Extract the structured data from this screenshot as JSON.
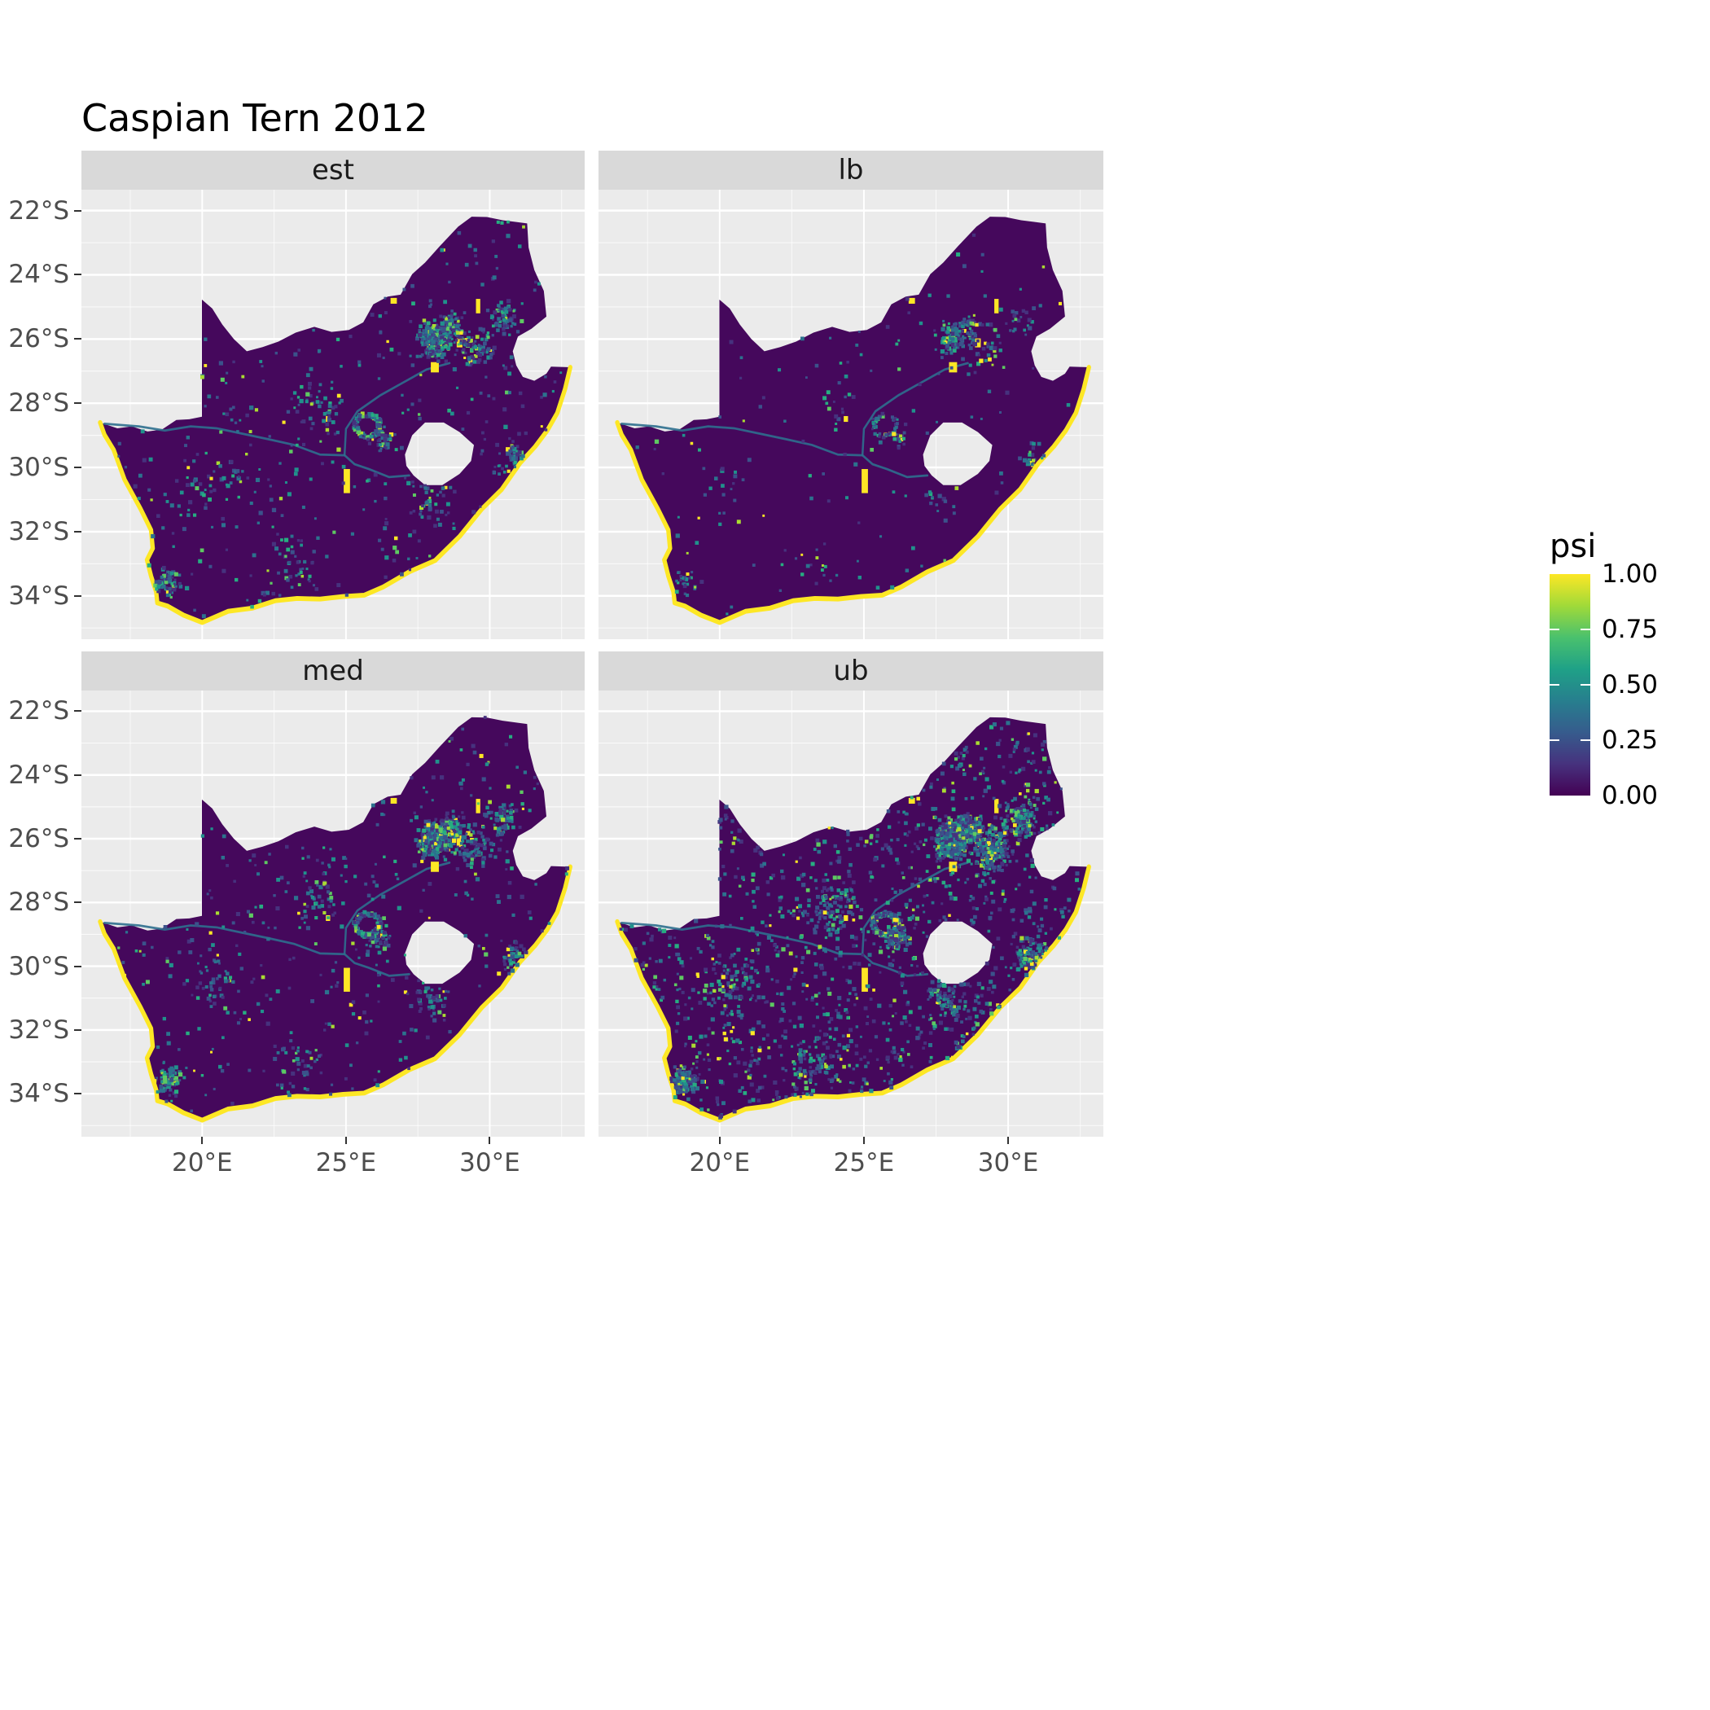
{
  "title": "Caspian Tern 2012",
  "chart_data": {
    "type": "heatmap",
    "subtype": "faceted raster occupancy-probability map (ggplot-style facet_wrap)",
    "region": "South Africa",
    "facets": [
      "est",
      "lb",
      "med",
      "ub"
    ],
    "legend": {
      "title": "psi",
      "labels": [
        "1.00",
        "0.75",
        "0.50",
        "0.25",
        "0.00"
      ],
      "values": [
        1.0,
        0.75,
        0.5,
        0.25,
        0.0
      ],
      "stops": [
        "#440154",
        "#46327E",
        "#365C8D",
        "#277F8E",
        "#1FA187",
        "#4AC16D",
        "#A0DA39",
        "#FDE725"
      ]
    },
    "x_axis": {
      "ticks": [
        "20°E",
        "25°E",
        "30°E"
      ],
      "values": [
        20,
        25,
        30
      ]
    },
    "y_axis": {
      "ticks": [
        "22°S",
        "24°S",
        "26°S",
        "28°S",
        "30°S",
        "32°S",
        "34°S"
      ],
      "values": [
        22,
        24,
        26,
        28,
        30,
        32,
        34
      ]
    },
    "value_summary": {
      "description": "psi mostly near 0 (dark purple) across the country; coastline cells near 1 (yellow); scattered mid/high cells concentrated around Gauteng, Kimberley ring, Bloemfontein, Cape Town and eastern highveld; density lowest in lb, moderate in est and med, highest in ub",
      "scale_range": [
        0.0,
        1.0
      ]
    },
    "colors": {
      "background": "#FFFFFF",
      "panel_bg": "#EBEBEB",
      "strip_bg": "#D9D9D9",
      "grid": "#FFFFFF",
      "base": "#45085C",
      "max": "#FDE725",
      "river": "#2E6F8E",
      "axis_text": "#4D4D4D",
      "tick": "#333333",
      "cell_weights": [
        [
          "#46327E",
          0.24
        ],
        [
          "#3B528B",
          0.22
        ],
        [
          "#2C728E",
          0.2
        ],
        [
          "#21918C",
          0.14
        ],
        [
          "#27AD81",
          0.08
        ],
        [
          "#5EC962",
          0.05
        ],
        [
          "#AADC32",
          0.04
        ],
        [
          "#FDE725",
          0.03
        ]
      ]
    },
    "facet_params": {
      "est": {
        "seed": 101,
        "base": 620,
        "hot": 1.0
      },
      "lb": {
        "seed": 202,
        "base": 240,
        "hot": 0.38
      },
      "med": {
        "seed": 303,
        "base": 680,
        "hot": 1.05
      },
      "ub": {
        "seed": 404,
        "base": 2200,
        "hot": 2.2
      }
    },
    "map": {
      "coast_from": 43,
      "outer": [
        [
          16.45,
          28.6
        ],
        [
          17.05,
          28.78
        ],
        [
          17.55,
          28.72
        ],
        [
          18.1,
          28.88
        ],
        [
          18.6,
          28.82
        ],
        [
          19.1,
          28.52
        ],
        [
          19.55,
          28.5
        ],
        [
          19.99,
          28.42
        ],
        [
          19.99,
          24.77
        ],
        [
          20.35,
          25.05
        ],
        [
          20.7,
          25.55
        ],
        [
          21.1,
          26.0
        ],
        [
          21.55,
          26.38
        ],
        [
          22.1,
          26.25
        ],
        [
          22.65,
          26.08
        ],
        [
          23.25,
          25.8
        ],
        [
          23.9,
          25.62
        ],
        [
          24.5,
          25.78
        ],
        [
          25.1,
          25.72
        ],
        [
          25.6,
          25.48
        ],
        [
          25.95,
          24.92
        ],
        [
          26.45,
          24.68
        ],
        [
          26.9,
          24.62
        ],
        [
          27.3,
          23.98
        ],
        [
          27.75,
          23.62
        ],
        [
          28.25,
          23.12
        ],
        [
          28.9,
          22.5
        ],
        [
          29.37,
          22.19
        ],
        [
          29.9,
          22.2
        ],
        [
          30.45,
          22.3
        ],
        [
          31.3,
          22.4
        ],
        [
          31.35,
          23.15
        ],
        [
          31.55,
          23.85
        ],
        [
          31.88,
          24.5
        ],
        [
          31.97,
          25.3
        ],
        [
          31.45,
          25.68
        ],
        [
          30.98,
          25.92
        ],
        [
          30.8,
          26.38
        ],
        [
          30.92,
          26.82
        ],
        [
          31.15,
          27.18
        ],
        [
          31.55,
          27.3
        ],
        [
          31.97,
          27.08
        ],
        [
          32.13,
          26.86
        ],
        [
          32.8,
          26.88
        ],
        [
          32.62,
          27.55
        ],
        [
          32.35,
          28.3
        ],
        [
          32.0,
          28.85
        ],
        [
          31.58,
          29.35
        ],
        [
          31.05,
          29.87
        ],
        [
          30.42,
          30.68
        ],
        [
          29.72,
          31.3
        ],
        [
          28.95,
          32.15
        ],
        [
          28.1,
          32.9
        ],
        [
          27.2,
          33.25
        ],
        [
          26.3,
          33.72
        ],
        [
          25.63,
          33.98
        ],
        [
          24.9,
          34.02
        ],
        [
          24.1,
          34.1
        ],
        [
          23.3,
          34.08
        ],
        [
          22.55,
          34.15
        ],
        [
          21.75,
          34.38
        ],
        [
          20.9,
          34.48
        ],
        [
          20.0,
          34.83
        ],
        [
          19.35,
          34.6
        ],
        [
          18.8,
          34.32
        ],
        [
          18.44,
          34.22
        ],
        [
          18.4,
          33.88
        ],
        [
          18.22,
          33.38
        ],
        [
          18.08,
          32.88
        ],
        [
          18.28,
          32.52
        ],
        [
          18.22,
          31.95
        ],
        [
          17.85,
          31.28
        ],
        [
          17.3,
          30.38
        ],
        [
          16.92,
          29.45
        ],
        [
          16.6,
          28.98
        ]
      ],
      "lesotho": [
        [
          27.05,
          29.6
        ],
        [
          27.3,
          29.0
        ],
        [
          27.75,
          28.6
        ],
        [
          28.4,
          28.6
        ],
        [
          28.95,
          28.9
        ],
        [
          29.45,
          29.3
        ],
        [
          29.35,
          29.8
        ],
        [
          28.95,
          30.2
        ],
        [
          28.35,
          30.55
        ],
        [
          27.75,
          30.55
        ],
        [
          27.35,
          30.25
        ],
        [
          27.1,
          29.95
        ]
      ],
      "rivers": [
        [
          [
            28.6,
            26.75
          ],
          [
            27.8,
            26.95
          ],
          [
            27.0,
            27.35
          ],
          [
            26.2,
            27.75
          ],
          [
            25.4,
            28.25
          ],
          [
            25.0,
            28.8
          ],
          [
            24.95,
            29.62
          ]
        ],
        [
          [
            27.2,
            30.25
          ],
          [
            26.5,
            30.3
          ],
          [
            25.8,
            30.05
          ],
          [
            25.3,
            29.9
          ],
          [
            24.95,
            29.62
          ]
        ],
        [
          [
            24.95,
            29.62
          ],
          [
            24.1,
            29.6
          ],
          [
            23.2,
            29.3
          ],
          [
            22.3,
            29.12
          ],
          [
            21.4,
            28.95
          ],
          [
            20.5,
            28.78
          ],
          [
            19.6,
            28.72
          ],
          [
            18.7,
            28.85
          ],
          [
            17.8,
            28.72
          ],
          [
            16.6,
            28.64
          ]
        ]
      ],
      "hotspots": [
        {
          "lon": 28.05,
          "lat": 26.05,
          "sd": 0.5,
          "n": 240
        },
        {
          "lon": 28.65,
          "lat": 25.7,
          "sd": 0.45,
          "n": 110
        },
        {
          "lon": 25.75,
          "lat": 28.7,
          "ring": 0.42,
          "n": 120
        },
        {
          "lon": 18.8,
          "lat": 33.6,
          "sd": 0.38,
          "n": 70
        },
        {
          "lon": 26.2,
          "lat": 29.15,
          "sd": 0.35,
          "n": 45
        },
        {
          "lon": 30.85,
          "lat": 29.7,
          "sd": 0.5,
          "n": 55
        },
        {
          "lon": 29.45,
          "lat": 26.3,
          "sd": 0.6,
          "n": 85
        },
        {
          "lon": 24.0,
          "lat": 28.1,
          "sd": 0.8,
          "n": 40
        },
        {
          "lon": 30.45,
          "lat": 25.4,
          "sd": 0.55,
          "n": 55
        },
        {
          "lon": 27.9,
          "lat": 31.0,
          "sd": 0.7,
          "n": 40
        },
        {
          "lon": 20.4,
          "lat": 30.6,
          "sd": 0.9,
          "n": 35
        },
        {
          "lon": 23.3,
          "lat": 33.0,
          "sd": 0.9,
          "n": 35
        }
      ],
      "hot_patches": [
        {
          "x": 27.95,
          "y": 26.72,
          "w": 0.28,
          "h": 0.32
        },
        {
          "x": 28.85,
          "y": 25.98,
          "w": 0.2,
          "h": 0.28
        },
        {
          "x": 24.92,
          "y": 30.05,
          "w": 0.22,
          "h": 0.75
        },
        {
          "x": 29.52,
          "y": 24.75,
          "w": 0.15,
          "h": 0.45
        },
        {
          "x": 26.55,
          "y": 24.72,
          "w": 0.22,
          "h": 0.18
        },
        {
          "x": 24.3,
          "y": 28.4,
          "w": 0.15,
          "h": 0.18
        }
      ]
    }
  }
}
